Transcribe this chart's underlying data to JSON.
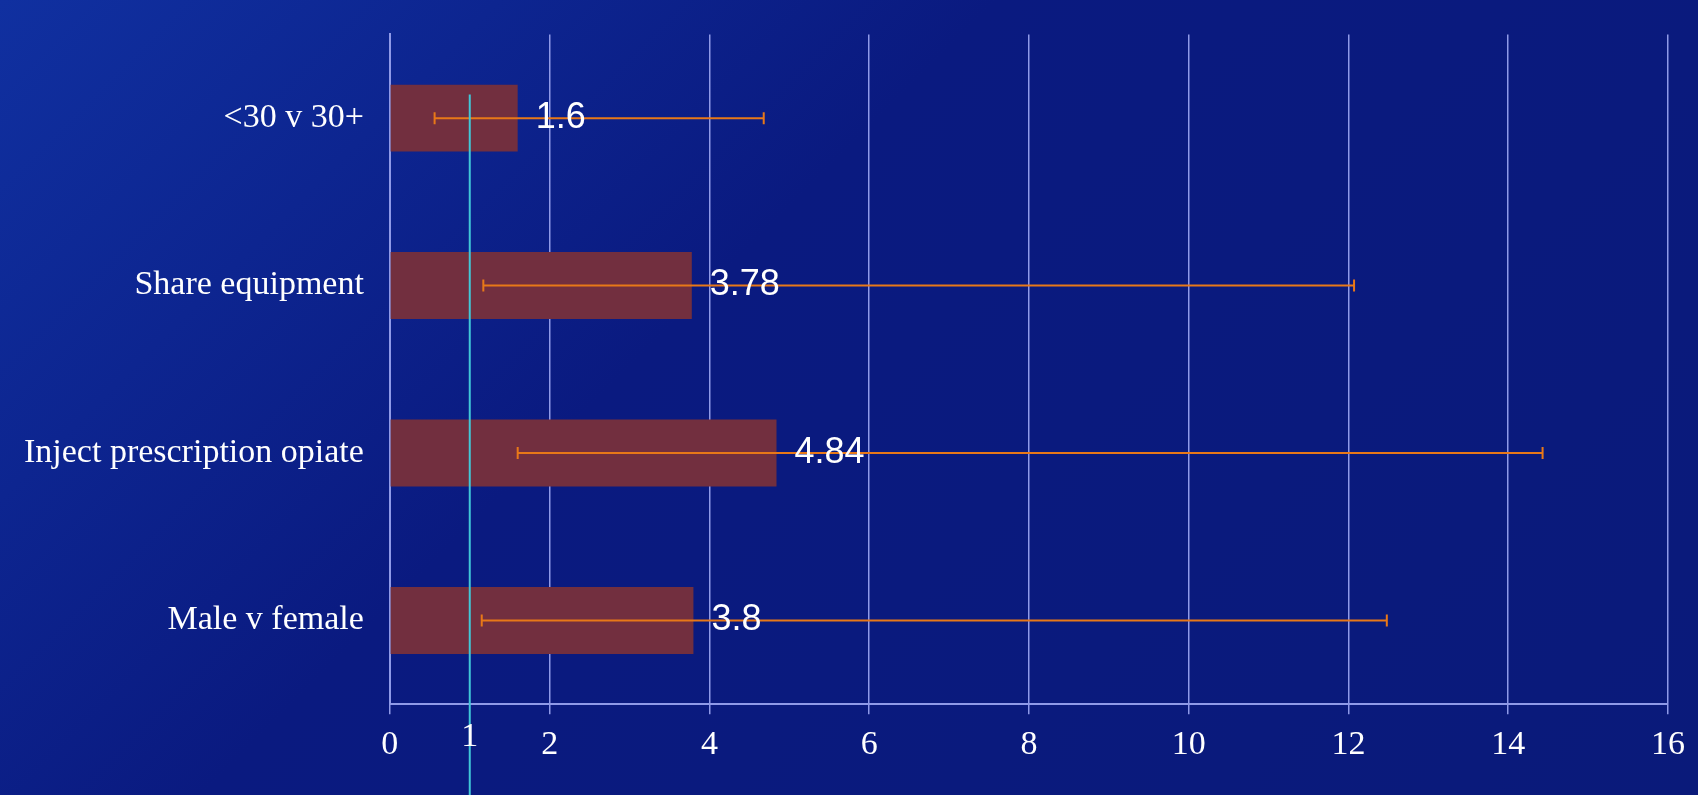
{
  "chart_data": {
    "type": "bar",
    "orientation": "horizontal",
    "categories": [
      "<30 v 30+",
      "Share equipment",
      "Inject prescription opiate",
      "Male v female"
    ],
    "values": [
      1.6,
      3.78,
      4.84,
      3.8
    ],
    "color": "#722f3f",
    "errors": [
      [
        0.56,
        4.68
      ],
      [
        1.17,
        12.07
      ],
      [
        1.6,
        14.43
      ],
      [
        1.15,
        12.48
      ]
    ],
    "data_labels": true,
    "xlim": [
      0,
      16
    ],
    "xticks": [
      0,
      2,
      4,
      6,
      8,
      10,
      12,
      14,
      16
    ],
    "grid": "x",
    "legend": false,
    "ref_lines": [
      {
        "axis": "x",
        "value": 1,
        "label": "1",
        "color": "#40c8d8"
      }
    ]
  }
}
